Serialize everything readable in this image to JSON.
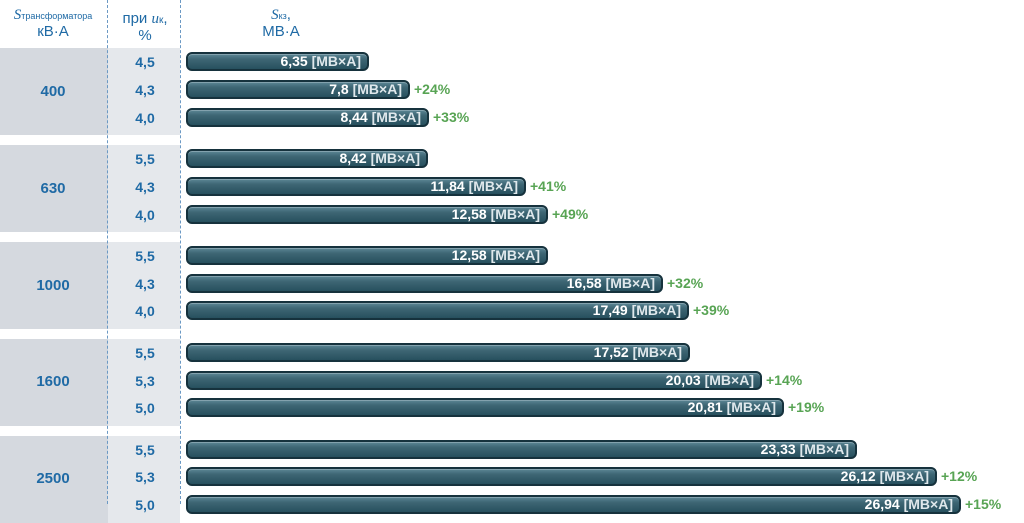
{
  "header": {
    "s_symbol": "S",
    "s_subscript": "трансформатора",
    "s_unit": "кВ·А",
    "uk_prefix": "при",
    "uk_symbol": "u",
    "uk_subscript": "к",
    "uk_suffix": ",",
    "uk_unit": "%",
    "sk_symbol": "S",
    "sk_subscript": "кз",
    "sk_suffix": ",",
    "sk_unit": "МВ·А"
  },
  "unit_tag": "[МВ×А]",
  "chart_data": {
    "type": "bar",
    "orientation": "horizontal",
    "groups": [
      {
        "name": "400",
        "rows": [
          {
            "uk": "4,5",
            "value": 6.35,
            "label": "6,35",
            "delta": ""
          },
          {
            "uk": "4,3",
            "value": 7.8,
            "label": "7,8",
            "delta": "+24%"
          },
          {
            "uk": "4,0",
            "value": 8.44,
            "label": "8,44",
            "delta": "+33%"
          }
        ]
      },
      {
        "name": "630",
        "rows": [
          {
            "uk": "5,5",
            "value": 8.42,
            "label": "8,42",
            "delta": ""
          },
          {
            "uk": "4,3",
            "value": 11.84,
            "label": "11,84",
            "delta": "+41%"
          },
          {
            "uk": "4,0",
            "value": 12.58,
            "label": "12,58",
            "delta": "+49%"
          }
        ]
      },
      {
        "name": "1000",
        "rows": [
          {
            "uk": "5,5",
            "value": 12.58,
            "label": "12,58",
            "delta": ""
          },
          {
            "uk": "4,3",
            "value": 16.58,
            "label": "16,58",
            "delta": "+32%"
          },
          {
            "uk": "4,0",
            "value": 17.49,
            "label": "17,49",
            "delta": "+39%"
          }
        ]
      },
      {
        "name": "1600",
        "rows": [
          {
            "uk": "5,5",
            "value": 17.52,
            "label": "17,52",
            "delta": ""
          },
          {
            "uk": "5,3",
            "value": 20.03,
            "label": "20,03",
            "delta": "+14%"
          },
          {
            "uk": "5,0",
            "value": 20.81,
            "label": "20,81",
            "delta": "+19%"
          }
        ]
      },
      {
        "name": "2500",
        "rows": [
          {
            "uk": "5,5",
            "value": 23.33,
            "label": "23,33",
            "delta": ""
          },
          {
            "uk": "5,3",
            "value": 26.12,
            "label": "26,12",
            "delta": "+12%"
          },
          {
            "uk": "5,0",
            "value": 26.94,
            "label": "26,94",
            "delta": "+15%"
          }
        ]
      }
    ],
    "colors": {
      "bar": "#2f5967",
      "bar_border": "#16323d",
      "group_bg": "#d5d9df",
      "label": "#1f6aa5",
      "delta": "#58a454"
    }
  }
}
